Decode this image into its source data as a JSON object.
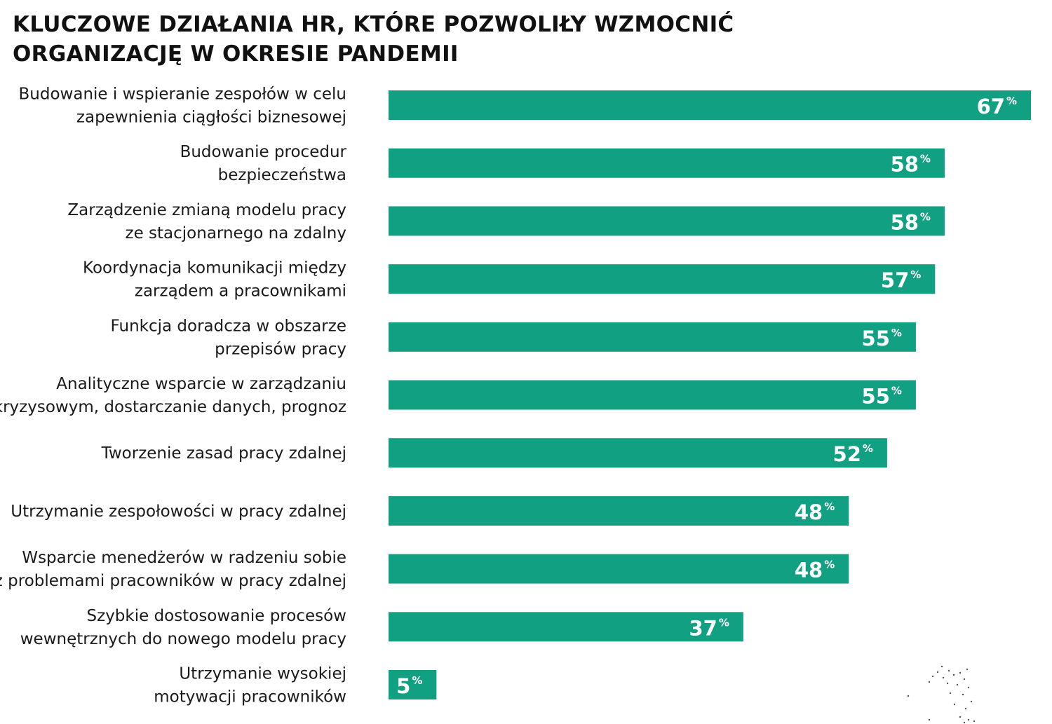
{
  "title_lines": [
    "KLUCZOWE DZIAŁANIA HR, KTÓRE POZWOLIŁY WZMOCNIĆ",
    "ORGANIZACJĘ W OKRESIE PANDEMII"
  ],
  "chart_data": {
    "type": "bar",
    "orientation": "horizontal",
    "title": "KLUCZOWE DZIAŁANIA HR, KTÓRE POZWOLIŁY WZMOCNIĆ ORGANIZACJĘ W OKRESIE PANDEMII",
    "unit": "%",
    "bar_color": "#12a083",
    "label_color": "#ffffff",
    "xlim": [
      0,
      67
    ],
    "grid": false,
    "categories": [
      [
        "Budowanie i wspieranie zespołów w celu",
        "zapewnienia ciągłości biznesowej"
      ],
      [
        "Budowanie procedur",
        "bezpieczeństwa"
      ],
      [
        "Zarządzenie zmianą modelu pracy",
        "ze stacjonarnego na zdalny"
      ],
      [
        "Koordynacja komunikacji między",
        "zarządem a pracownikami"
      ],
      [
        "Funkcja doradcza w obszarze",
        "przepisów pracy"
      ],
      [
        "Analityczne wsparcie w zarządzaniu",
        "kryzysowym, dostarczanie danych, prognoz"
      ],
      [
        "Tworzenie zasad pracy zdalnej"
      ],
      [
        "Utrzymanie zespołowości w pracy zdalnej"
      ],
      [
        "Wsparcie menedżerów w radzeniu sobie",
        "z problemami pracowników w pracy zdalnej"
      ],
      [
        "Szybkie dostosowanie procesów",
        "wewnętrznych do nowego modelu pracy"
      ],
      [
        "Utrzymanie wysokiej",
        "motywacji pracowników"
      ]
    ],
    "values": [
      67,
      58,
      58,
      57,
      55,
      55,
      52,
      48,
      48,
      37,
      5
    ]
  }
}
